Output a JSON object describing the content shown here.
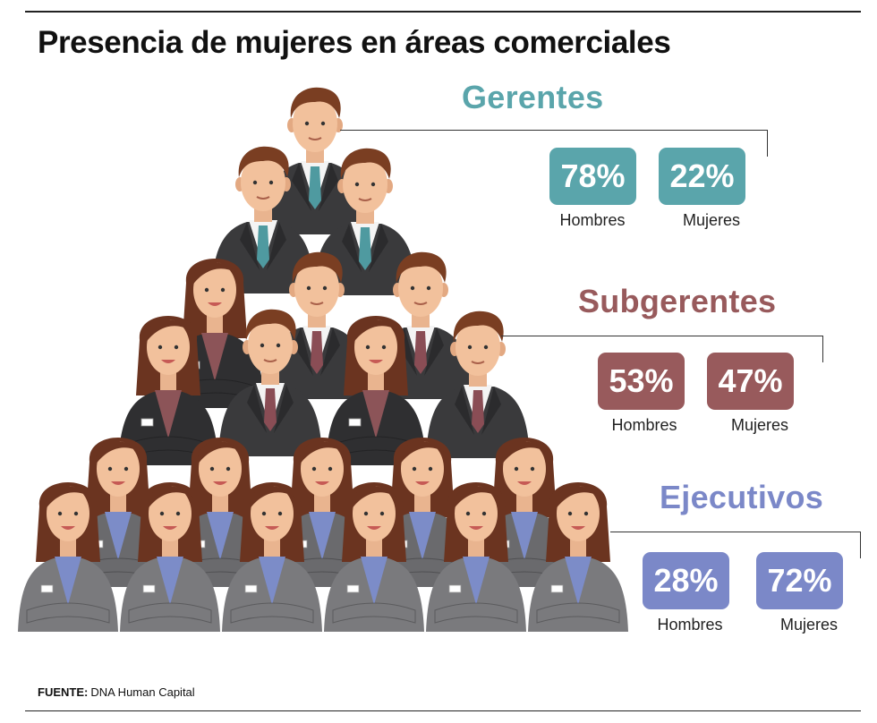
{
  "title": "Presencia de mujeres en áreas comerciales",
  "source": {
    "label": "FUENTE:",
    "text": "DNA Human Capital"
  },
  "colors": {
    "gerentes": "#5aa5ab",
    "subgerentes": "#985a5c",
    "ejecutivos": "#7b88c8"
  },
  "chart_data": {
    "type": "table",
    "title": "Presencia de mujeres en áreas comerciales",
    "categories": [
      "Gerentes",
      "Subgerentes",
      "Ejecutivos"
    ],
    "series": [
      {
        "name": "Hombres",
        "values": [
          78,
          53,
          28
        ]
      },
      {
        "name": "Mujeres",
        "values": [
          22,
          47,
          72
        ]
      }
    ],
    "unit": "%"
  },
  "groups": [
    {
      "name": "Gerentes",
      "hombres": "78%",
      "mujeres": "22%",
      "hombres_label": "Hombres",
      "mujeres_label": "Mujeres"
    },
    {
      "name": "Subgerentes",
      "hombres": "53%",
      "mujeres": "47%",
      "hombres_label": "Hombres",
      "mujeres_label": "Mujeres"
    },
    {
      "name": "Ejecutivos",
      "hombres": "28%",
      "mujeres": "72%",
      "hombres_label": "Hombres",
      "mujeres_label": "Mujeres"
    }
  ]
}
